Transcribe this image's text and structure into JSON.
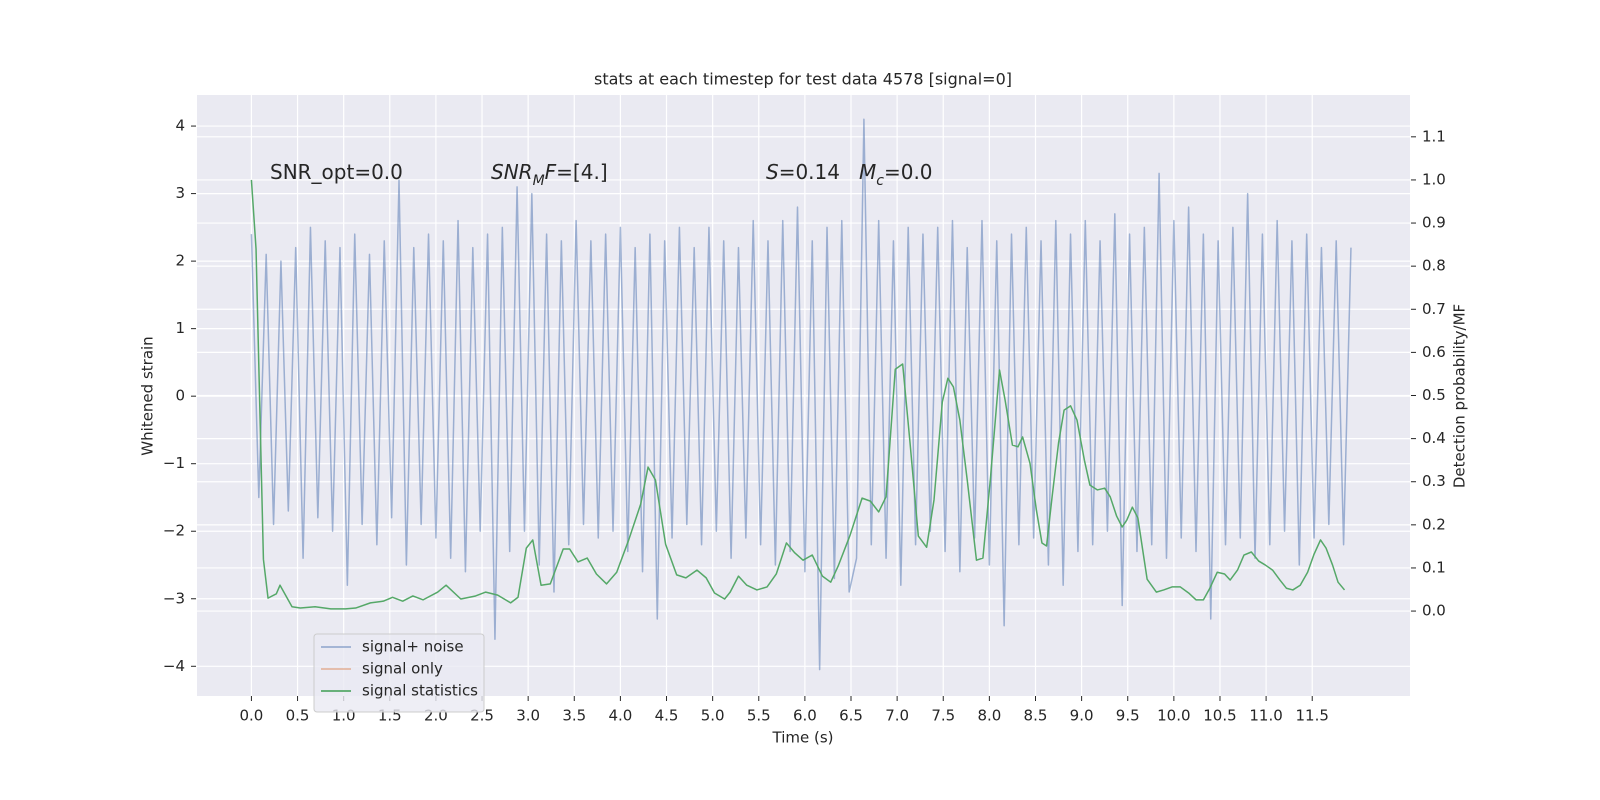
{
  "chart_data": {
    "type": "line",
    "title": "stats at each timestep for test data 4578 [signal=0]",
    "xlabel": "Time (s)",
    "ylabel": "Whitened strain",
    "y2label": "Detection probability/MF",
    "grid": true,
    "legend": "lower left",
    "xlim": [
      -0.59,
      12.56
    ],
    "ylim": [
      -4.44,
      4.46
    ],
    "y2lim": [
      -0.197,
      1.197
    ],
    "xticks": [
      {
        "value": 0,
        "label": "0.0"
      },
      0.5,
      {
        "value": 1,
        "label": "1.0"
      },
      1.5,
      {
        "value": 2,
        "label": "2.0"
      },
      2.5,
      {
        "value": 3,
        "label": "3.0"
      },
      3.5,
      {
        "value": 4,
        "label": "4.0"
      },
      4.5,
      {
        "value": 5,
        "label": "5.0"
      },
      5.5,
      {
        "value": 6,
        "label": "6.0"
      },
      6.5,
      {
        "value": 7,
        "label": "7.0"
      },
      7.5,
      {
        "value": 8,
        "label": "8.0"
      },
      8.5,
      {
        "value": 9,
        "label": "9.0"
      },
      9.5,
      {
        "value": 10,
        "label": "10.0"
      },
      10.5,
      {
        "value": 11,
        "label": "11.0"
      },
      11.5
    ],
    "yticks": [
      {
        "value": -4,
        "label": "−4"
      },
      {
        "value": -3,
        "label": "−3"
      },
      {
        "value": -2,
        "label": "−2"
      },
      {
        "value": -1,
        "label": "−1"
      },
      0,
      1,
      2,
      3,
      4
    ],
    "y2ticks": [
      {
        "value": 0,
        "label": "0.0"
      },
      0.1,
      0.2,
      0.3,
      0.4,
      0.5,
      0.6,
      0.7,
      0.8,
      0.9,
      {
        "value": 1,
        "label": "1.0"
      },
      1.1
    ],
    "annotations": [
      {
        "parts": [
          {
            "text": "SNR_opt=0.0",
            "style": "normal"
          }
        ]
      },
      {
        "parts": [
          {
            "text": "SNR",
            "style": "italic"
          },
          {
            "text": "M",
            "style": "sub"
          },
          {
            "text": "F",
            "style": "italic"
          },
          {
            "text": "=[4.]",
            "style": "normal"
          }
        ]
      },
      {
        "parts": [
          {
            "text": "S",
            "style": "italic"
          },
          {
            "text": "=0.14",
            "style": "normal"
          }
        ]
      },
      {
        "parts": [
          {
            "text": "M",
            "style": "italic"
          },
          {
            "text": "c",
            "style": "sub"
          },
          {
            "text": "=0.0",
            "style": "normal"
          }
        ]
      }
    ],
    "series": [
      {
        "name": "signal+ noise",
        "color": "#4c72b0",
        "alpha": 0.5,
        "axis": "y",
        "x": [
          0,
          0.08,
          0.16,
          0.24,
          0.32,
          0.4,
          0.48,
          0.56,
          0.64,
          0.72,
          0.8,
          0.88,
          0.96,
          1.04,
          1.12,
          1.2,
          1.28,
          1.36,
          1.44,
          1.52,
          1.6,
          1.68,
          1.76,
          1.84,
          1.92,
          2,
          2.08,
          2.16,
          2.24,
          2.32,
          2.4,
          2.48,
          2.56,
          2.64,
          2.72,
          2.8,
          2.88,
          2.96,
          3.04,
          3.12,
          3.2,
          3.28,
          3.36,
          3.44,
          3.52,
          3.6,
          3.68,
          3.76,
          3.84,
          3.92,
          4,
          4.08,
          4.16,
          4.24,
          4.32,
          4.4,
          4.48,
          4.56,
          4.64,
          4.72,
          4.8,
          4.88,
          4.96,
          5.04,
          5.12,
          5.2,
          5.28,
          5.36,
          5.44,
          5.52,
          5.6,
          5.68,
          5.76,
          5.84,
          5.92,
          6,
          6.08,
          6.16,
          6.24,
          6.32,
          6.4,
          6.48,
          6.56,
          6.64,
          6.72,
          6.8,
          6.88,
          6.96,
          7.04,
          7.12,
          7.2,
          7.28,
          7.36,
          7.44,
          7.52,
          7.6,
          7.68,
          7.76,
          7.84,
          7.92,
          8,
          8.08,
          8.16,
          8.24,
          8.32,
          8.4,
          8.48,
          8.56,
          8.64,
          8.72,
          8.8,
          8.88,
          8.96,
          9.04,
          9.12,
          9.2,
          9.28,
          9.36,
          9.44,
          9.52,
          9.6,
          9.68,
          9.76,
          9.84,
          9.92,
          10,
          10.08,
          10.16,
          10.24,
          10.32,
          10.4,
          10.48,
          10.56,
          10.64,
          10.72,
          10.8,
          10.88,
          10.96,
          11.04,
          11.12,
          11.2,
          11.28,
          11.36,
          11.44,
          11.52,
          11.6,
          11.68,
          11.76,
          11.84,
          11.92
        ],
        "values": [
          2.4,
          -1.5,
          2.1,
          -1.9,
          2.0,
          -1.7,
          2.2,
          -2.4,
          2.5,
          -1.8,
          2.3,
          -2.0,
          2.2,
          -2.8,
          2.4,
          -1.9,
          2.1,
          -2.2,
          2.3,
          -1.8,
          3.2,
          -2.5,
          2.2,
          -1.9,
          2.4,
          -2.1,
          2.3,
          -2.4,
          2.6,
          -2.6,
          2.2,
          -2.0,
          2.4,
          -3.6,
          2.5,
          -2.3,
          3.1,
          -2.0,
          3.0,
          -2.5,
          2.4,
          -2.9,
          2.3,
          -2.2,
          2.6,
          -1.9,
          2.3,
          -2.1,
          2.4,
          -2.0,
          2.5,
          -2.3,
          2.2,
          -2.6,
          2.4,
          -3.3,
          2.3,
          -2.1,
          2.5,
          -1.9,
          2.2,
          -2.2,
          2.5,
          -2.0,
          2.3,
          -2.4,
          2.2,
          -2.1,
          2.6,
          -2.2,
          2.3,
          -2.5,
          2.6,
          -2.3,
          2.8,
          -2.6,
          2.3,
          -4.05,
          2.5,
          -2.7,
          2.6,
          -2.9,
          -2.4,
          4.1,
          -2.2,
          2.6,
          -2.4,
          2.3,
          -2.8,
          2.5,
          -2.2,
          2.4,
          -2.0,
          2.5,
          -2.3,
          2.6,
          -2.6,
          2.2,
          -2.1,
          2.6,
          -2.5,
          2.3,
          -3.4,
          2.4,
          -2.2,
          2.5,
          -2.1,
          2.3,
          -2.5,
          2.6,
          -2.8,
          2.4,
          -2.3,
          2.6,
          -2.2,
          2.3,
          -2.0,
          2.7,
          -3.1,
          2.4,
          -2.3,
          2.5,
          -2.2,
          3.3,
          -2.4,
          2.6,
          -2.1,
          2.8,
          -2.3,
          2.4,
          -3.3,
          2.3,
          -2.2,
          2.5,
          -2.1,
          3.0,
          -2.4,
          2.4,
          -2.2,
          2.6,
          -2.0,
          2.3,
          -2.5,
          2.4,
          -2.1,
          2.2,
          -1.9,
          2.3,
          -2.2,
          2.2
        ]
      },
      {
        "name": "signal only",
        "color": "#dd8452",
        "alpha": 0.5,
        "axis": "y",
        "x": [],
        "values": []
      },
      {
        "name": "signal statistics",
        "color": "#55a868",
        "alpha": 1,
        "axis": "y2",
        "x": [
          0,
          0.05,
          0.13,
          0.18,
          0.27,
          0.31,
          0.44,
          0.53,
          0.69,
          0.86,
          1.02,
          1.13,
          1.29,
          1.43,
          1.53,
          1.64,
          1.75,
          1.86,
          2.02,
          2.11,
          2.27,
          2.43,
          2.54,
          2.67,
          2.81,
          2.89,
          2.98,
          3.05,
          3.14,
          3.24,
          3.38,
          3.45,
          3.54,
          3.64,
          3.74,
          3.85,
          3.96,
          4.09,
          4.22,
          4.3,
          4.38,
          4.49,
          4.61,
          4.71,
          4.83,
          4.93,
          5.02,
          5.13,
          5.19,
          5.28,
          5.37,
          5.48,
          5.59,
          5.69,
          5.8,
          5.89,
          5.98,
          6.08,
          6.19,
          6.28,
          6.36,
          6.49,
          6.62,
          6.71,
          6.8,
          6.88,
          6.98,
          7.06,
          7.14,
          7.23,
          7.32,
          7.4,
          7.49,
          7.55,
          7.61,
          7.68,
          7.76,
          7.86,
          7.93,
          8.01,
          8.11,
          8.17,
          8.25,
          8.31,
          8.36,
          8.44,
          8.51,
          8.57,
          8.62,
          8.68,
          8.75,
          8.81,
          8.88,
          8.95,
          9.03,
          9.09,
          9.17,
          9.25,
          9.31,
          9.38,
          9.44,
          9.49,
          9.55,
          9.61,
          9.71,
          9.81,
          9.89,
          9.98,
          10.07,
          10.16,
          10.24,
          10.32,
          10.39,
          10.47,
          10.55,
          10.61,
          10.69,
          10.76,
          10.84,
          10.92,
          10.99,
          11.07,
          11.15,
          11.22,
          11.29,
          11.37,
          11.45,
          11.52,
          11.59,
          11.65,
          11.72,
          11.78,
          11.85
        ],
        "values": [
          1.0,
          0.84,
          0.12,
          0.03,
          0.04,
          0.06,
          0.01,
          0.007,
          0.01,
          0.005,
          0.005,
          0.007,
          0.019,
          0.023,
          0.032,
          0.023,
          0.035,
          0.026,
          0.044,
          0.06,
          0.028,
          0.035,
          0.044,
          0.037,
          0.019,
          0.032,
          0.146,
          0.165,
          0.06,
          0.063,
          0.144,
          0.144,
          0.114,
          0.123,
          0.086,
          0.063,
          0.09,
          0.165,
          0.248,
          0.334,
          0.304,
          0.155,
          0.084,
          0.077,
          0.095,
          0.077,
          0.042,
          0.028,
          0.044,
          0.081,
          0.06,
          0.049,
          0.056,
          0.086,
          0.158,
          0.135,
          0.118,
          0.13,
          0.081,
          0.067,
          0.104,
          0.176,
          0.262,
          0.255,
          0.23,
          0.265,
          0.561,
          0.573,
          0.39,
          0.174,
          0.148,
          0.258,
          0.485,
          0.54,
          0.52,
          0.443,
          0.304,
          0.118,
          0.123,
          0.304,
          0.559,
          0.49,
          0.385,
          0.381,
          0.404,
          0.343,
          0.234,
          0.158,
          0.151,
          0.265,
          0.39,
          0.466,
          0.476,
          0.443,
          0.35,
          0.292,
          0.281,
          0.285,
          0.265,
          0.22,
          0.195,
          0.211,
          0.241,
          0.216,
          0.074,
          0.044,
          0.049,
          0.056,
          0.056,
          0.042,
          0.026,
          0.026,
          0.053,
          0.09,
          0.086,
          0.072,
          0.095,
          0.13,
          0.137,
          0.116,
          0.107,
          0.095,
          0.072,
          0.053,
          0.049,
          0.06,
          0.09,
          0.132,
          0.165,
          0.146,
          0.107,
          0.067,
          0.049
        ]
      }
    ]
  }
}
